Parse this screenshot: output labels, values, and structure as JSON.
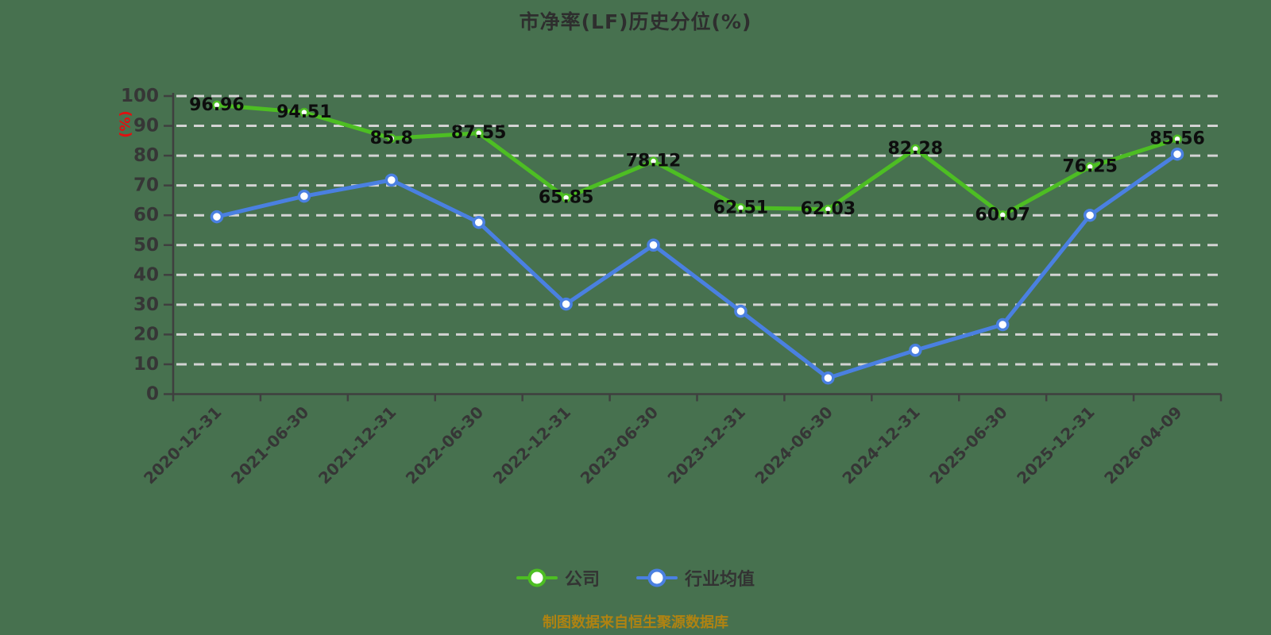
{
  "title": "市净率(LF)历史分位(%)",
  "y_axis_name": "(%)",
  "footer": "制图数据来自恒生聚源数据库",
  "colors": {
    "background": "#47714f",
    "title_text": "#2e2e2e",
    "axis_line": "#3f3f3f",
    "tick_label": "#363636",
    "gridline": "#d3d3d3",
    "data_label": "#0d0d0d",
    "y_axis_name": "#e01010",
    "footer_text": "#b08311",
    "legend_text": "#333333",
    "company_series": "#4dbe23",
    "industry_series": "#4a80e1",
    "marker_fill": "#ffffff"
  },
  "legend": {
    "items": [
      {
        "label": "公司"
      },
      {
        "label": "行业均值"
      }
    ]
  },
  "chart_data": {
    "type": "line",
    "title": "市净率(LF)历史分位(%)",
    "ylabel": "(%)",
    "ylim": [
      0,
      100
    ],
    "y_tick_step": 10,
    "y_ticks": [
      0,
      10,
      20,
      30,
      40,
      50,
      60,
      70,
      80,
      90,
      100
    ],
    "grid": "horizontal-dashed",
    "legend_position": "bottom",
    "x_label_rotation": 45,
    "categories": [
      "2020-12-31",
      "2021-06-30",
      "2021-12-31",
      "2022-06-30",
      "2022-12-31",
      "2023-06-30",
      "2023-12-31",
      "2024-06-30",
      "2024-12-31",
      "2025-06-30",
      "2025-12-31",
      "2026-04-09"
    ],
    "series": [
      {
        "name": "公司",
        "values": [
          96.96,
          94.51,
          85.8,
          87.55,
          65.85,
          78.12,
          62.51,
          62.03,
          82.28,
          60.07,
          76.25,
          85.56
        ],
        "labels": [
          "96.96",
          "94.51",
          "85.8",
          "87.55",
          "65.85",
          "78.12",
          "62.51",
          "62.03",
          "82.28",
          "60.07",
          "76.25",
          "85.56"
        ],
        "show_labels": true
      },
      {
        "name": "行业均值",
        "values": [
          59.5,
          66.4,
          71.8,
          57.6,
          30.2,
          50,
          27.8,
          5.4,
          14.7,
          23.3,
          60,
          80.5
        ],
        "show_labels": false
      }
    ]
  }
}
